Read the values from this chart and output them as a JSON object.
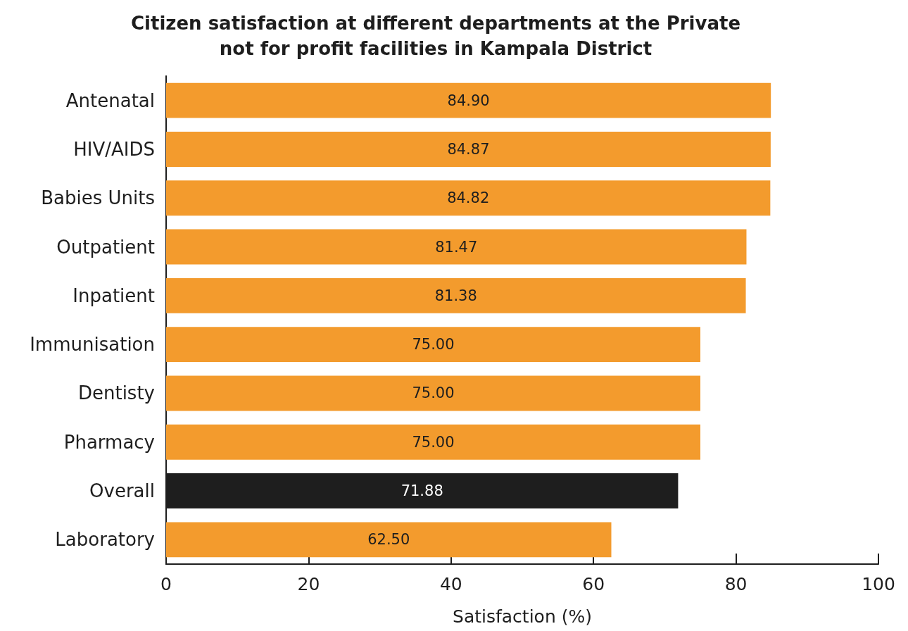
{
  "chart_data": {
    "type": "bar",
    "orientation": "horizontal",
    "title": "Citizen satisfaction at different departments at the Private\nnot for profit facilities in Kampala District",
    "xlabel": "Satisfaction (%)",
    "categories": [
      "Antenatal",
      "HIV/AIDS",
      "Babies Units",
      "Outpatient",
      "Inpatient",
      "Immunisation",
      "Dentisty",
      "Pharmacy",
      "Overall",
      "Laboratory"
    ],
    "values": [
      84.9,
      84.87,
      84.82,
      81.47,
      81.38,
      75.0,
      75.0,
      75.0,
      71.88,
      62.5
    ],
    "colors": [
      "#f39b2d",
      "#f39b2d",
      "#f39b2d",
      "#f39b2d",
      "#f39b2d",
      "#f39b2d",
      "#f39b2d",
      "#f39b2d",
      "#1e1e1e",
      "#f39b2d"
    ],
    "value_labels": [
      "84.90",
      "84.87",
      "84.82",
      "81.47",
      "81.38",
      "75.00",
      "75.00",
      "75.00",
      "71.88",
      "62.50"
    ],
    "xlim": [
      0,
      100
    ],
    "xticks": [
      0,
      20,
      40,
      60,
      80,
      100
    ]
  }
}
